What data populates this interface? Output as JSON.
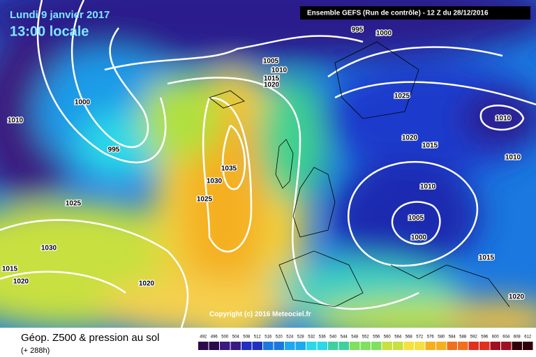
{
  "header": {
    "date": "Lundi 9 janvier 2017",
    "time": "13:00 locale",
    "model": "Ensemble GEFS  (Run de contrôle)  - 12 Z du 28/12/2016"
  },
  "isobar_labels": [
    "995",
    "1000",
    "1005",
    "1010",
    "1015",
    "1020",
    "1000",
    "1010",
    "995",
    "1025",
    "1020",
    "1015",
    "1010",
    "1010",
    "1035",
    "1030",
    "1025",
    "1025",
    "1010",
    "1005",
    "1000",
    "1030",
    "1015",
    "1020",
    "1020",
    "1015",
    "1020"
  ],
  "copyright": "Copyright (c) 2016 Meteociel.fr",
  "footer": {
    "title": "Géop. Z500 & pression au sol",
    "lead": "(+ 288h)"
  },
  "scale": [
    492,
    496,
    500,
    504,
    508,
    512,
    516,
    520,
    524,
    528,
    532,
    536,
    540,
    544,
    548,
    552,
    556,
    560,
    564,
    568,
    572,
    576,
    580,
    584,
    588,
    592,
    596,
    600,
    604,
    608,
    612
  ]
}
